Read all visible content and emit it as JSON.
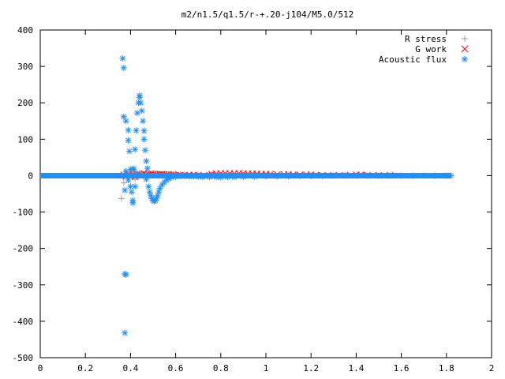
{
  "chart_data": {
    "type": "scatter",
    "title": "m2/n1.5/q1.5/r-+.20-j104/M5.0/512",
    "xlabel": "",
    "ylabel": "",
    "xlim": [
      0,
      2
    ],
    "ylim": [
      -500,
      400
    ],
    "x_ticks": [
      0,
      0.2,
      0.4,
      0.6,
      0.8,
      1,
      1.2,
      1.4,
      1.6,
      1.8,
      2
    ],
    "x_tick_labels": [
      "0",
      "0.2",
      "0.4",
      "0.6",
      "0.8",
      "1",
      "1.2",
      "1.4",
      "1.6",
      "1.8",
      "2"
    ],
    "y_ticks": [
      -500,
      -400,
      -300,
      -200,
      -100,
      0,
      100,
      200,
      300,
      400
    ],
    "y_tick_labels": [
      "-500",
      "-400",
      "-300",
      "-200",
      "-100",
      "0",
      "100",
      "200",
      "300",
      "400"
    ],
    "grid": false,
    "legend_position": "top-right",
    "series": [
      {
        "name": "R stress",
        "marker": "plus",
        "color": "#a0a0a0",
        "points": [
          [
            0.36,
            -63
          ],
          [
            0.37,
            -20
          ],
          [
            0.38,
            10
          ],
          [
            0.4,
            8
          ],
          [
            0.42,
            -10
          ],
          [
            0.44,
            5
          ],
          [
            0.46,
            4
          ],
          [
            0.48,
            3
          ],
          [
            0.5,
            6
          ],
          [
            0.52,
            5
          ],
          [
            0.55,
            4
          ],
          [
            0.58,
            5
          ],
          [
            0.6,
            5
          ],
          [
            0.62,
            4
          ],
          [
            0.64,
            3
          ],
          [
            0.67,
            3
          ],
          [
            0.7,
            2
          ],
          [
            0.75,
            2
          ],
          [
            0.8,
            2
          ],
          [
            0.85,
            1
          ],
          [
            0.9,
            1
          ],
          [
            0.95,
            1
          ],
          [
            1.0,
            1
          ],
          [
            1.1,
            1
          ],
          [
            1.2,
            0
          ]
        ]
      },
      {
        "name": "G work",
        "marker": "cross",
        "color": "#ff0000",
        "points": [
          [
            0.37,
            2
          ],
          [
            0.38,
            -2
          ],
          [
            0.39,
            3
          ],
          [
            0.4,
            -2
          ],
          [
            0.41,
            4
          ],
          [
            0.42,
            -3
          ],
          [
            0.43,
            5
          ],
          [
            0.44,
            4
          ],
          [
            0.45,
            3
          ],
          [
            0.46,
            6
          ],
          [
            0.47,
            2
          ],
          [
            0.48,
            4
          ],
          [
            0.49,
            5
          ],
          [
            0.5,
            4
          ],
          [
            0.51,
            3
          ],
          [
            0.52,
            3
          ],
          [
            0.53,
            4
          ],
          [
            0.54,
            4
          ],
          [
            0.55,
            3
          ],
          [
            0.56,
            2
          ],
          [
            0.57,
            2
          ],
          [
            0.58,
            2
          ],
          [
            0.59,
            2
          ],
          [
            0.6,
            1
          ],
          [
            0.62,
            1
          ],
          [
            0.64,
            1
          ],
          [
            0.66,
            1
          ],
          [
            0.68,
            1
          ],
          [
            0.7,
            1
          ],
          [
            0.75,
            1
          ],
          [
            0.76,
            4
          ],
          [
            0.78,
            5
          ],
          [
            0.8,
            6
          ],
          [
            0.82,
            6
          ],
          [
            0.84,
            6
          ],
          [
            0.86,
            6
          ],
          [
            0.88,
            6
          ],
          [
            0.9,
            5
          ],
          [
            0.92,
            5
          ],
          [
            0.94,
            5
          ],
          [
            0.96,
            5
          ],
          [
            0.98,
            4
          ],
          [
            1.0,
            4
          ],
          [
            1.02,
            4
          ],
          [
            1.05,
            3
          ],
          [
            1.08,
            3
          ],
          [
            1.1,
            3
          ],
          [
            1.12,
            2
          ],
          [
            1.15,
            2
          ],
          [
            1.18,
            2
          ],
          [
            1.2,
            2
          ],
          [
            1.22,
            1
          ],
          [
            1.25,
            1
          ],
          [
            1.3,
            1
          ],
          [
            1.35,
            1
          ],
          [
            1.4,
            2
          ],
          [
            1.42,
            2
          ],
          [
            1.45,
            1
          ],
          [
            1.5,
            1
          ],
          [
            1.55,
            1
          ]
        ]
      },
      {
        "name": "Acoustic flux",
        "marker": "star",
        "color": "#1e90ff",
        "points": [
          [
            0.365,
            322
          ],
          [
            0.37,
            296
          ],
          [
            0.37,
            162
          ],
          [
            0.38,
            150
          ],
          [
            0.39,
            125
          ],
          [
            0.39,
            97
          ],
          [
            0.395,
            67
          ],
          [
            0.4,
            17
          ],
          [
            0.41,
            19
          ],
          [
            0.415,
            17
          ],
          [
            0.42,
            72
          ],
          [
            0.425,
            124
          ],
          [
            0.43,
            172
          ],
          [
            0.435,
            200
          ],
          [
            0.44,
            220
          ],
          [
            0.44,
            215
          ],
          [
            0.445,
            200
          ],
          [
            0.45,
            178
          ],
          [
            0.455,
            150
          ],
          [
            0.46,
            123
          ],
          [
            0.46,
            100
          ],
          [
            0.465,
            70
          ],
          [
            0.47,
            40
          ],
          [
            0.475,
            20
          ],
          [
            0.38,
            12
          ],
          [
            0.39,
            -12
          ],
          [
            0.4,
            -30
          ],
          [
            0.405,
            -45
          ],
          [
            0.41,
            -68
          ],
          [
            0.41,
            -75
          ],
          [
            0.42,
            -30
          ],
          [
            0.43,
            5
          ],
          [
            0.375,
            -270
          ],
          [
            0.38,
            -272
          ],
          [
            0.375,
            -432
          ],
          [
            0.375,
            -40
          ],
          [
            0.47,
            -10
          ],
          [
            0.48,
            -30
          ],
          [
            0.485,
            -45
          ],
          [
            0.49,
            -55
          ],
          [
            0.495,
            -63
          ],
          [
            0.5,
            -68
          ],
          [
            0.505,
            -70
          ],
          [
            0.51,
            -68
          ],
          [
            0.515,
            -62
          ],
          [
            0.52,
            -55
          ],
          [
            0.525,
            -45
          ],
          [
            0.53,
            -35
          ],
          [
            0.54,
            -25
          ],
          [
            0.55,
            -18
          ],
          [
            0.56,
            -12
          ],
          [
            0.57,
            -8
          ],
          [
            0.58,
            -5
          ],
          [
            0.6,
            -3
          ],
          [
            0.62,
            -2
          ],
          [
            0.64,
            -1
          ],
          [
            0.66,
            -2
          ],
          [
            0.68,
            -2
          ],
          [
            0.7,
            -3
          ],
          [
            0.72,
            -4
          ],
          [
            0.75,
            -4
          ],
          [
            0.78,
            -4
          ],
          [
            0.8,
            -5
          ],
          [
            0.83,
            -4
          ],
          [
            0.86,
            -4
          ],
          [
            0.9,
            -3
          ],
          [
            0.95,
            -3
          ],
          [
            1.0,
            -2
          ],
          [
            1.05,
            -2
          ],
          [
            1.1,
            -2
          ],
          [
            1.15,
            -1
          ],
          [
            1.2,
            -1
          ],
          [
            1.25,
            -1
          ],
          [
            1.3,
            0
          ],
          [
            1.35,
            0
          ],
          [
            1.4,
            0
          ],
          [
            1.45,
            0
          ],
          [
            1.5,
            0
          ],
          [
            1.55,
            0
          ],
          [
            1.6,
            0
          ],
          [
            1.65,
            0
          ],
          [
            1.7,
            0
          ],
          [
            1.75,
            0
          ],
          [
            1.8,
            0
          ],
          [
            1.82,
            0
          ]
        ],
        "baseline_band": {
          "x": [
            0,
            1.82
          ],
          "y": 0
        }
      }
    ]
  }
}
